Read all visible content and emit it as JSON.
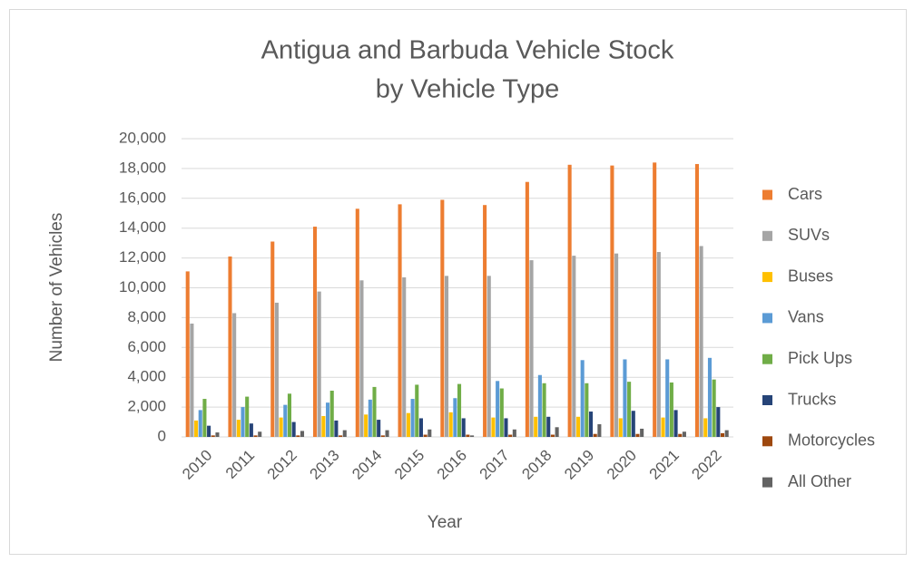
{
  "chart_data": {
    "type": "bar",
    "title": [
      "Antigua and Barbuda Vehicle Stock",
      "by Vehicle Type"
    ],
    "x_label": "Year",
    "y_label": "Number of Vehicles",
    "categories": [
      "2010",
      "2011",
      "2012",
      "2013",
      "2014",
      "2015",
      "2016",
      "2017",
      "2018",
      "2019",
      "2020",
      "2021",
      "2022"
    ],
    "series": [
      {
        "name": "Cars",
        "color": "#ed7d31",
        "values": [
          11100,
          12100,
          13100,
          14100,
          15300,
          15600,
          15900,
          15550,
          17100,
          18250,
          18200,
          18400,
          18300
        ]
      },
      {
        "name": "SUVs",
        "color": "#a5a5a5",
        "values": [
          7600,
          8300,
          9000,
          9750,
          10500,
          10700,
          10800,
          10800,
          11850,
          12150,
          12300,
          12400,
          12800
        ]
      },
      {
        "name": "Buses",
        "color": "#ffc000",
        "values": [
          1100,
          1150,
          1300,
          1400,
          1500,
          1600,
          1650,
          1300,
          1350,
          1350,
          1250,
          1300,
          1250
        ]
      },
      {
        "name": "Vans",
        "color": "#5b9bd5",
        "values": [
          1800,
          2000,
          2150,
          2300,
          2500,
          2550,
          2600,
          3750,
          4150,
          5150,
          5200,
          5200,
          5300
        ]
      },
      {
        "name": "Pick Ups",
        "color": "#70ad47",
        "values": [
          2550,
          2700,
          2900,
          3100,
          3350,
          3500,
          3550,
          3250,
          3600,
          3600,
          3700,
          3650,
          3850
        ]
      },
      {
        "name": "Trucks",
        "color": "#264478",
        "values": [
          750,
          900,
          1000,
          1100,
          1150,
          1250,
          1250,
          1250,
          1350,
          1700,
          1750,
          1800,
          2000
        ]
      },
      {
        "name": "Motorcycles",
        "color": "#9e480e",
        "values": [
          100,
          100,
          100,
          100,
          100,
          150,
          150,
          150,
          150,
          200,
          200,
          200,
          250
        ]
      },
      {
        "name": "All Other",
        "color": "#636363",
        "values": [
          300,
          350,
          400,
          450,
          450,
          500,
          100,
          500,
          650,
          850,
          550,
          350,
          450
        ]
      }
    ],
    "ylim": [
      0,
      20000
    ],
    "yticks": [
      0,
      {
        "value": 2000,
        "label": "2,000"
      },
      {
        "value": 4000,
        "label": "4,000"
      },
      {
        "value": 6000,
        "label": "6,000"
      },
      {
        "value": 8000,
        "label": "8,000"
      },
      {
        "value": 10000,
        "label": "10,000"
      },
      {
        "value": 12000,
        "label": "12,000"
      },
      {
        "value": 14000,
        "label": "14,000"
      },
      {
        "value": 16000,
        "label": "16,000"
      },
      {
        "value": 18000,
        "label": "18,000"
      },
      {
        "value": 20000,
        "label": "20,000"
      }
    ],
    "grid": true,
    "legend": "right"
  }
}
